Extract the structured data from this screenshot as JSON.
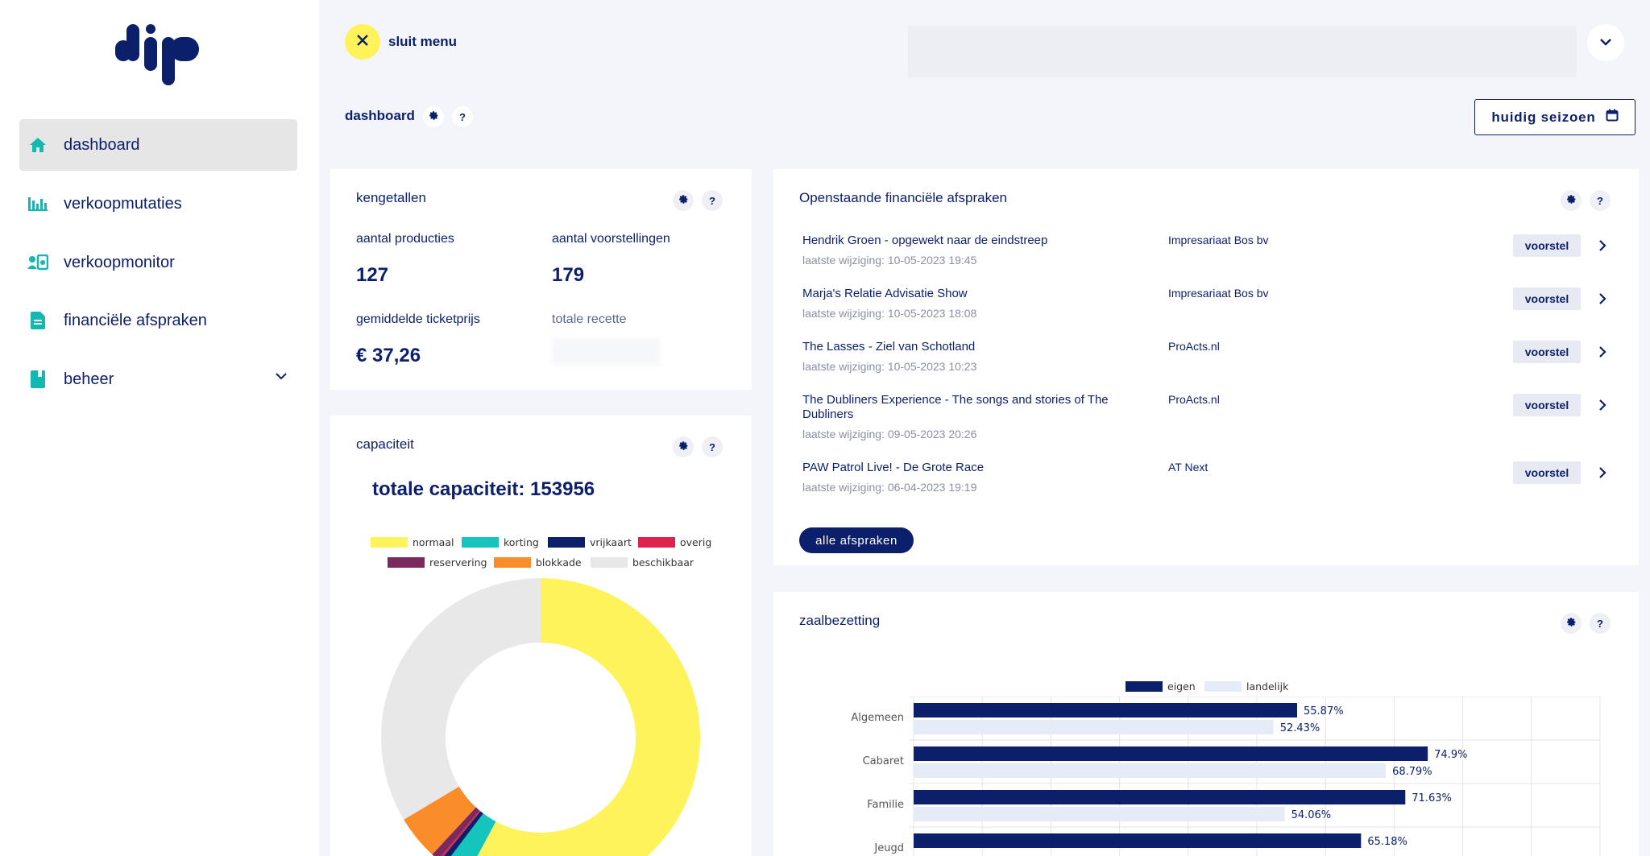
{
  "sidebar": {
    "items": [
      {
        "label": "dashboard",
        "icon": "home-icon"
      },
      {
        "label": "verkoopmutaties",
        "icon": "bar-chart-icon"
      },
      {
        "label": "verkoopmonitor",
        "icon": "monitor-icon"
      },
      {
        "label": "financiële afspraken",
        "icon": "document-icon"
      },
      {
        "label": "beheer",
        "icon": "book-icon"
      }
    ]
  },
  "header": {
    "close_label": "sluit menu"
  },
  "page": {
    "title": "dashboard",
    "help": "?",
    "season_button": "huidig seizoen"
  },
  "kengetallen": {
    "title": "kengetallen",
    "help": "?",
    "productions_label": "aantal producties",
    "productions_value": "127",
    "performances_label": "aantal voorstellingen",
    "performances_value": "179",
    "avg_price_label": "gemiddelde ticketprijs",
    "avg_price_value": "€ 37,26",
    "revenue_label": "totale recette"
  },
  "capaciteit": {
    "title": "capaciteit",
    "help": "?",
    "total_label": "totale capaciteit: 153956"
  },
  "financial": {
    "title": "Openstaande financiële afspraken",
    "help": "?",
    "rows": [
      {
        "title": "Hendrik Groen - opgewekt naar de eindstreep",
        "date": "laatste wijziging: 10-05-2023 19:45",
        "company": "Impresariaat Bos bv",
        "status": "voorstel"
      },
      {
        "title": "Marja's Relatie Advisatie Show",
        "date": "laatste wijziging: 10-05-2023 18:08",
        "company": "Impresariaat Bos bv",
        "status": "voorstel"
      },
      {
        "title": "The Lasses - Ziel van Schotland",
        "date": "laatste wijziging: 10-05-2023 10:23",
        "company": "ProActs.nl",
        "status": "voorstel"
      },
      {
        "title": "The Dubliners Experience - The songs and stories of The Dubliners",
        "date": "laatste wijziging: 09-05-2023 20:26",
        "company": "ProActs.nl",
        "status": "voorstel"
      },
      {
        "title": "PAW Patrol Live! - De Grote Race",
        "date": "laatste wijziging: 06-04-2023 19:19",
        "company": "AT Next",
        "status": "voorstel"
      }
    ],
    "all_button": "alle afspraken"
  },
  "zaalbezetting": {
    "title": "zaalbezetting",
    "help": "?"
  },
  "colors": {
    "navy": "#0b1f6b",
    "teal": "#14b8b3",
    "yellow": "#fff35c",
    "light_bg": "#f3f5fa"
  },
  "chart_data": [
    {
      "type": "pie",
      "variant": "donut",
      "legend": "top",
      "series": [
        {
          "name": "normaal",
          "color": "#fff35c",
          "value": 0.578
        },
        {
          "name": "korting",
          "color": "#14c4bd",
          "value": 0.025
        },
        {
          "name": "vrijkaart",
          "color": "#0b1f6b",
          "value": 0.006
        },
        {
          "name": "overig",
          "color": "#e0234e",
          "value": 0.002
        },
        {
          "name": "reservering",
          "color": "#7b2a5d",
          "value": 0.008
        },
        {
          "name": "blokkade",
          "color": "#fb8c2a",
          "value": 0.045
        },
        {
          "name": "beschikbaar",
          "color": "#e8e8e8",
          "value": 0.336
        }
      ]
    },
    {
      "type": "bar",
      "orientation": "horizontal",
      "legend": "top",
      "categories": [
        "Algemeen",
        "Cabaret",
        "Familie",
        "Jeugd"
      ],
      "series": [
        {
          "name": "eigen",
          "color": "#0b1f6b",
          "values": [
            55.87,
            74.9,
            71.63,
            65.18
          ],
          "labels": [
            "55.87%",
            "74.9%",
            "71.63%",
            "65.18%"
          ]
        },
        {
          "name": "landelijk",
          "color": "#e6ecf7",
          "values": [
            52.43,
            68.79,
            54.06,
            null
          ],
          "labels": [
            "52.43%",
            "68.79%",
            "54.06%",
            ""
          ]
        }
      ],
      "xlim": [
        0,
        100
      ],
      "grid": true
    }
  ]
}
